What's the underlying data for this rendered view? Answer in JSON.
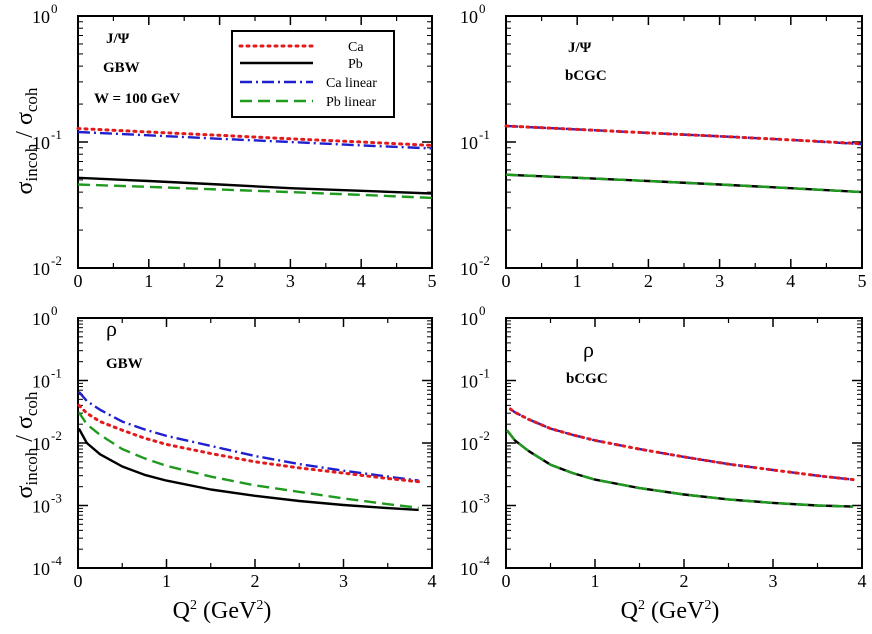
{
  "figure": {
    "x_axis_title_main": "Q",
    "x_axis_title_sup": "2",
    "x_axis_title_unit_open": " (GeV",
    "x_axis_title_unit_sup": "2",
    "x_axis_title_unit_close": ")",
    "y_axis_sigma": "σ",
    "y_axis_incoh": "incoh",
    "y_axis_slash": " / ",
    "y_axis_coh": "coh"
  },
  "legend": {
    "entries": [
      {
        "label": "Ca",
        "color": "#e31a1c",
        "dash": "dot"
      },
      {
        "label": "Pb",
        "color": "#000000",
        "dash": "solid"
      },
      {
        "label": "Ca linear",
        "color": "#1f1fcf",
        "dash": "dashdot"
      },
      {
        "label": "Pb linear",
        "color": "#1f9a1f",
        "dash": "dash"
      }
    ]
  },
  "chart_data": [
    {
      "type": "line",
      "panel": "top-left",
      "labels": [
        "J/Ψ",
        "GBW",
        "W = 100 GeV"
      ],
      "xlim": [
        0,
        5
      ],
      "ylim": [
        0.01,
        1
      ],
      "yscale": "log",
      "xticks": [
        "0",
        "1",
        "2",
        "3",
        "4",
        "5"
      ],
      "yticks": [
        {
          "base": "10",
          "exp": "0"
        },
        {
          "base": "10",
          "exp": "-1"
        },
        {
          "base": "10",
          "exp": "-2"
        }
      ],
      "series": [
        {
          "name": "Ca",
          "x": [
            0,
            1,
            2,
            3,
            4,
            5
          ],
          "y": [
            0.128,
            0.12,
            0.113,
            0.106,
            0.1,
            0.094
          ]
        },
        {
          "name": "Pb",
          "x": [
            0,
            1,
            2,
            3,
            4,
            5
          ],
          "y": [
            0.052,
            0.049,
            0.046,
            0.043,
            0.041,
            0.039
          ]
        },
        {
          "name": "Ca linear",
          "x": [
            0,
            1,
            2,
            3,
            4,
            5
          ],
          "y": [
            0.12,
            0.113,
            0.106,
            0.1,
            0.094,
            0.089
          ]
        },
        {
          "name": "Pb linear",
          "x": [
            0,
            1,
            2,
            3,
            4,
            5
          ],
          "y": [
            0.046,
            0.044,
            0.042,
            0.04,
            0.038,
            0.036
          ]
        }
      ]
    },
    {
      "type": "line",
      "panel": "top-right",
      "labels": [
        "J/Ψ",
        "bCGC"
      ],
      "xlim": [
        0,
        5
      ],
      "ylim": [
        0.01,
        1
      ],
      "yscale": "log",
      "xticks": [
        "0",
        "1",
        "2",
        "3",
        "4",
        "5"
      ],
      "yticks": [
        {
          "base": "10",
          "exp": "0"
        },
        {
          "base": "10",
          "exp": "-1"
        },
        {
          "base": "10",
          "exp": "-2"
        }
      ],
      "series": [
        {
          "name": "Ca",
          "x": [
            0,
            1,
            2,
            3,
            4,
            5
          ],
          "y": [
            0.134,
            0.126,
            0.118,
            0.111,
            0.104,
            0.097
          ]
        },
        {
          "name": "Pb",
          "x": [
            0,
            1,
            2,
            3,
            4,
            5
          ],
          "y": [
            0.055,
            0.052,
            0.049,
            0.046,
            0.043,
            0.04
          ]
        },
        {
          "name": "Ca linear",
          "x": [
            0,
            1,
            2,
            3,
            4,
            5
          ],
          "y": [
            0.134,
            0.126,
            0.118,
            0.111,
            0.104,
            0.096
          ]
        },
        {
          "name": "Pb linear",
          "x": [
            0,
            1,
            2,
            3,
            4,
            5
          ],
          "y": [
            0.055,
            0.052,
            0.049,
            0.046,
            0.043,
            0.04
          ]
        }
      ]
    },
    {
      "type": "line",
      "panel": "bottom-left",
      "labels": [
        "ρ",
        "GBW"
      ],
      "xlim": [
        0,
        4
      ],
      "ylim": [
        0.0001,
        1
      ],
      "yscale": "log",
      "xticks": [
        "0",
        "1",
        "2",
        "3",
        "4"
      ],
      "yticks": [
        {
          "base": "10",
          "exp": "0"
        },
        {
          "base": "10",
          "exp": "-1"
        },
        {
          "base": "10",
          "exp": "-2"
        },
        {
          "base": "10",
          "exp": "-3"
        },
        {
          "base": "10",
          "exp": "-4"
        }
      ],
      "series": [
        {
          "name": "Ca",
          "x": [
            0.01,
            0.1,
            0.25,
            0.5,
            0.75,
            1,
            1.5,
            2,
            2.5,
            3,
            3.5,
            3.85
          ],
          "y": [
            0.04,
            0.03,
            0.022,
            0.016,
            0.012,
            0.0095,
            0.0068,
            0.005,
            0.004,
            0.0033,
            0.0027,
            0.0024
          ]
        },
        {
          "name": "Pb",
          "x": [
            0.01,
            0.1,
            0.25,
            0.5,
            0.75,
            1,
            1.5,
            2,
            2.5,
            3,
            3.5,
            3.85
          ],
          "y": [
            0.017,
            0.01,
            0.0066,
            0.0042,
            0.0031,
            0.0025,
            0.0018,
            0.00143,
            0.00118,
            0.00102,
            0.00091,
            0.00085
          ]
        },
        {
          "name": "Ca linear",
          "x": [
            0.01,
            0.1,
            0.25,
            0.5,
            0.75,
            1,
            1.5,
            2,
            2.5,
            3,
            3.5,
            3.85
          ],
          "y": [
            0.066,
            0.047,
            0.034,
            0.022,
            0.0165,
            0.013,
            0.009,
            0.0062,
            0.0046,
            0.0036,
            0.0029,
            0.0025
          ]
        },
        {
          "name": "Pb linear",
          "x": [
            0.01,
            0.1,
            0.25,
            0.5,
            0.75,
            1,
            1.5,
            2,
            2.5,
            3,
            3.5,
            3.85
          ],
          "y": [
            0.031,
            0.02,
            0.0135,
            0.008,
            0.0057,
            0.0043,
            0.0029,
            0.0021,
            0.00165,
            0.0013,
            0.00105,
            0.00092
          ]
        }
      ]
    },
    {
      "type": "line",
      "panel": "bottom-right",
      "labels": [
        "ρ",
        "bCGC"
      ],
      "xlim": [
        0,
        4
      ],
      "ylim": [
        0.0001,
        1
      ],
      "yscale": "log",
      "xticks": [
        "0",
        "1",
        "2",
        "3",
        "4"
      ],
      "yticks": [
        {
          "base": "10",
          "exp": "0"
        },
        {
          "base": "10",
          "exp": "-1"
        },
        {
          "base": "10",
          "exp": "-2"
        },
        {
          "base": "10",
          "exp": "-3"
        },
        {
          "base": "10",
          "exp": "-4"
        }
      ],
      "series": [
        {
          "name": "Ca",
          "x": [
            0.05,
            0.1,
            0.25,
            0.5,
            0.75,
            1,
            1.5,
            2,
            2.5,
            3,
            3.5,
            3.9
          ],
          "y": [
            0.035,
            0.031,
            0.024,
            0.017,
            0.0135,
            0.011,
            0.008,
            0.006,
            0.0046,
            0.0037,
            0.003,
            0.0026
          ]
        },
        {
          "name": "Pb",
          "x": [
            0.01,
            0.1,
            0.25,
            0.5,
            0.75,
            1,
            1.5,
            2,
            2.5,
            3,
            3.5,
            3.9
          ],
          "y": [
            0.016,
            0.011,
            0.0075,
            0.0045,
            0.0033,
            0.0026,
            0.0019,
            0.0015,
            0.00125,
            0.0011,
            0.001,
            0.00096
          ]
        },
        {
          "name": "Ca linear",
          "x": [
            0.05,
            0.1,
            0.25,
            0.5,
            0.75,
            1,
            1.5,
            2,
            2.5,
            3,
            3.5,
            3.9
          ],
          "y": [
            0.035,
            0.031,
            0.024,
            0.017,
            0.0135,
            0.011,
            0.008,
            0.006,
            0.0046,
            0.0037,
            0.003,
            0.0026
          ]
        },
        {
          "name": "Pb linear",
          "x": [
            0.01,
            0.1,
            0.25,
            0.5,
            0.75,
            1,
            1.5,
            2,
            2.5,
            3,
            3.5,
            3.9
          ],
          "y": [
            0.016,
            0.011,
            0.0075,
            0.0045,
            0.0033,
            0.0026,
            0.0019,
            0.0015,
            0.00125,
            0.0011,
            0.001,
            0.00096
          ]
        }
      ]
    }
  ]
}
